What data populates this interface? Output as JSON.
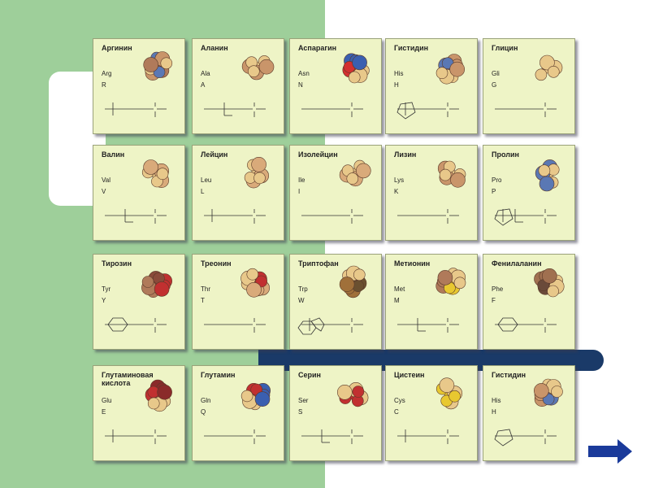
{
  "tiles": [
    {
      "name": "Аргинин",
      "abbr3": "Arg",
      "abbr1": "R",
      "colors": [
        "#e8c88a",
        "#c9956a",
        "#5a78b4",
        "#b07a5a"
      ]
    },
    {
      "name": "Аланин",
      "abbr3": "Ala",
      "abbr1": "A",
      "colors": [
        "#e8c88a",
        "#c9956a"
      ]
    },
    {
      "name": "Аспарагин",
      "abbr3": "Asn",
      "abbr1": "N",
      "colors": [
        "#d33030",
        "#3a5fb0",
        "#e8c88a"
      ]
    },
    {
      "name": "Гистидин",
      "abbr3": "His",
      "abbr1": "H",
      "colors": [
        "#5a78b4",
        "#c9956a",
        "#e8c88a"
      ]
    },
    {
      "name": "Глицин",
      "abbr3": "Gli",
      "abbr1": "G",
      "colors": [
        "#e8c88a"
      ]
    },
    {
      "name": "Валин",
      "abbr3": "Val",
      "abbr1": "V",
      "colors": [
        "#e8c88a",
        "#d9aa7a"
      ]
    },
    {
      "name": "Лейцин",
      "abbr3": "Leu",
      "abbr1": "L",
      "colors": [
        "#e8c88a",
        "#d9aa7a"
      ]
    },
    {
      "name": "Изолейцин",
      "abbr3": "Ile",
      "abbr1": "I",
      "colors": [
        "#e8c88a",
        "#d9aa7a"
      ]
    },
    {
      "name": "Лизин",
      "abbr3": "Lys",
      "abbr1": "K",
      "colors": [
        "#e8c88a",
        "#c9956a"
      ]
    },
    {
      "name": "Пролин",
      "abbr3": "Pro",
      "abbr1": "P",
      "colors": [
        "#e8c88a",
        "#5a78b4"
      ]
    },
    {
      "name": "Тирозин",
      "abbr3": "Tyr",
      "abbr1": "Y",
      "colors": [
        "#8a4a3a",
        "#c13030",
        "#b07a5a"
      ]
    },
    {
      "name": "Треонин",
      "abbr3": "Thr",
      "abbr1": "T",
      "colors": [
        "#c13030",
        "#d9aa7a",
        "#e8c88a"
      ]
    },
    {
      "name": "Триптофан",
      "abbr3": "Trp",
      "abbr1": "W",
      "colors": [
        "#6a5030",
        "#a0703a",
        "#e8c88a"
      ]
    },
    {
      "name": "Метионин",
      "abbr3": "Met",
      "abbr1": "M",
      "colors": [
        "#e8c830",
        "#b07a5a",
        "#e8c88a"
      ]
    },
    {
      "name": "Фенилаланин",
      "abbr3": "Phe",
      "abbr1": "F",
      "colors": [
        "#6a4a3a",
        "#a07050",
        "#e8c88a"
      ]
    },
    {
      "name": "Глутаминовая кислота",
      "abbr3": "Glu",
      "abbr1": "E",
      "colors": [
        "#c13030",
        "#8a2a2a",
        "#e8c88a"
      ]
    },
    {
      "name": "Глутамин",
      "abbr3": "Gln",
      "abbr1": "Q",
      "colors": [
        "#c13030",
        "#3a5fb0",
        "#e8c88a"
      ]
    },
    {
      "name": "Серин",
      "abbr3": "Ser",
      "abbr1": "S",
      "colors": [
        "#c13030",
        "#e8c88a"
      ]
    },
    {
      "name": "Цистеин",
      "abbr3": "Cys",
      "abbr1": "C",
      "colors": [
        "#e8c830",
        "#e8c88a"
      ]
    },
    {
      "name": "Гистидин",
      "abbr3": "His",
      "abbr1": "H",
      "colors": [
        "#5a78b4",
        "#c9956a",
        "#e8c88a"
      ]
    }
  ],
  "accent_colors": {
    "green": "#9ecf9a",
    "navy": "#1a3a68",
    "tile": "#eef4c6"
  }
}
